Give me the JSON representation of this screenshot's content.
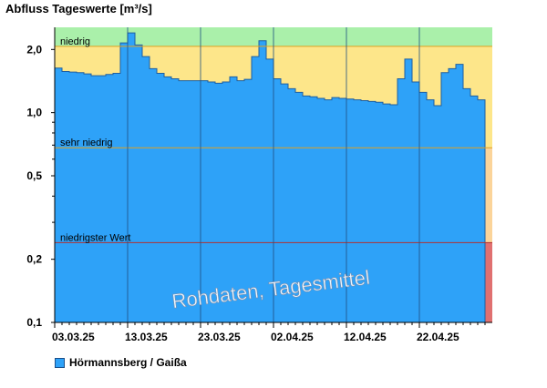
{
  "chart_data": {
    "type": "area",
    "title": "Abfluss Tageswerte [m³/s]",
    "y_scale": "log",
    "ylim": [
      0.1,
      2.55
    ],
    "y_ticks": [
      {
        "value": 2.0,
        "label": "2,0"
      },
      {
        "value": 1.0,
        "label": "1,0"
      },
      {
        "value": 0.5,
        "label": "0,5"
      },
      {
        "value": 0.2,
        "label": "0,2"
      },
      {
        "value": 0.1,
        "label": "0,1"
      }
    ],
    "x_start": "2025-03-03",
    "x_end": "2025-05-01",
    "x_ticks": [
      {
        "date": "2025-03-03",
        "label": "03.03.25"
      },
      {
        "date": "2025-03-13",
        "label": "13.03.25"
      },
      {
        "date": "2025-03-23",
        "label": "23.03.25"
      },
      {
        "date": "2025-04-02",
        "label": "02.04.25"
      },
      {
        "date": "2025-04-12",
        "label": "12.04.25"
      },
      {
        "date": "2025-04-22",
        "label": "22.04.25"
      }
    ],
    "thresholds": [
      {
        "label": "niedrig",
        "value": 2.07
      },
      {
        "label": "sehr niedrig",
        "value": 0.68
      },
      {
        "label": "niedrigster Wert",
        "value": 0.24
      }
    ],
    "zone_colors": {
      "above_niedrig": "#aaf0aa",
      "niedrig": "#fde68a",
      "sehr_niedrig": "#fbd49a",
      "niedrigster": "#e07070"
    },
    "series": [
      {
        "name": "Hörmannsberg / Gaißa",
        "color": "#2ea2f8",
        "dates": [
          "2025-03-03",
          "2025-03-04",
          "2025-03-05",
          "2025-03-06",
          "2025-03-07",
          "2025-03-08",
          "2025-03-09",
          "2025-03-10",
          "2025-03-11",
          "2025-03-12",
          "2025-03-13",
          "2025-03-14",
          "2025-03-15",
          "2025-03-16",
          "2025-03-17",
          "2025-03-18",
          "2025-03-19",
          "2025-03-20",
          "2025-03-21",
          "2025-03-22",
          "2025-03-23",
          "2025-03-24",
          "2025-03-25",
          "2025-03-26",
          "2025-03-27",
          "2025-03-28",
          "2025-03-29",
          "2025-03-30",
          "2025-03-31",
          "2025-04-01",
          "2025-04-02",
          "2025-04-03",
          "2025-04-04",
          "2025-04-05",
          "2025-04-06",
          "2025-04-07",
          "2025-04-08",
          "2025-04-09",
          "2025-04-10",
          "2025-04-11",
          "2025-04-12",
          "2025-04-13",
          "2025-04-14",
          "2025-04-15",
          "2025-04-16",
          "2025-04-17",
          "2025-04-18",
          "2025-04-19",
          "2025-04-20",
          "2025-04-21",
          "2025-04-22",
          "2025-04-23",
          "2025-04-24",
          "2025-04-25",
          "2025-04-26",
          "2025-04-27",
          "2025-04-28",
          "2025-04-29",
          "2025-04-30"
        ],
        "values": [
          1.63,
          1.57,
          1.56,
          1.55,
          1.53,
          1.5,
          1.5,
          1.52,
          1.54,
          2.15,
          2.4,
          2.1,
          1.85,
          1.62,
          1.54,
          1.48,
          1.45,
          1.42,
          1.42,
          1.42,
          1.42,
          1.4,
          1.38,
          1.4,
          1.48,
          1.42,
          1.44,
          1.85,
          2.2,
          1.8,
          1.45,
          1.37,
          1.3,
          1.25,
          1.2,
          1.19,
          1.17,
          1.15,
          1.18,
          1.17,
          1.16,
          1.15,
          1.14,
          1.13,
          1.12,
          1.1,
          1.09,
          1.45,
          1.8,
          1.4,
          1.25,
          1.15,
          1.08,
          1.55,
          1.62,
          1.7,
          1.3,
          1.2,
          1.15
        ]
      }
    ]
  },
  "watermark": "Rohdaten, Tagesmittel",
  "legend": {
    "label": "Hörmannsberg / Gaißa"
  }
}
